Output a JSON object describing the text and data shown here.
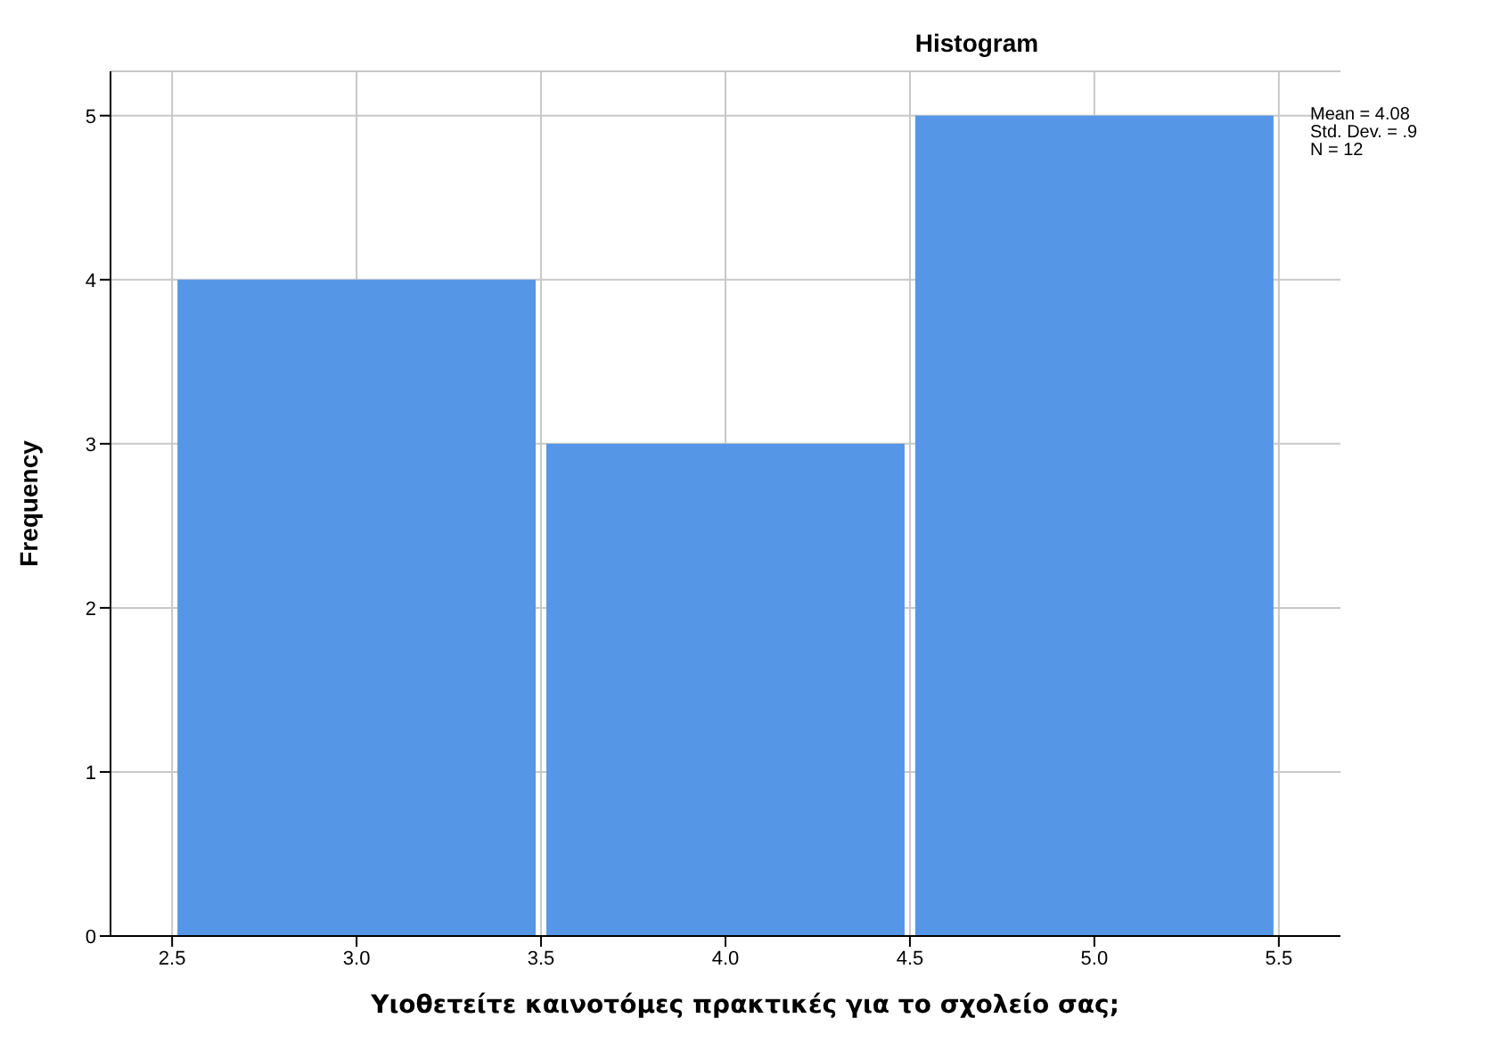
{
  "chart_data": {
    "type": "histogram",
    "title": "Histogram",
    "xlabel": "Υιοθετείτε καινοτόμες πρακτικές για το σχολείο σας;",
    "ylabel": "Frequency",
    "bins": [
      2.5,
      3.5,
      4.5,
      5.5
    ],
    "values": [
      4,
      3,
      5
    ],
    "color": "#5596e6",
    "xlim": [
      2.333,
      5.667
    ],
    "xticks": [
      2.5,
      {
        "value": 3,
        "label": "3.0"
      },
      3.5,
      {
        "value": 4,
        "label": "4.0"
      },
      4.5,
      {
        "value": 5,
        "label": "5.0"
      },
      5.5
    ],
    "ylim": [
      0,
      5.27
    ],
    "yticks": [
      0,
      1,
      2,
      3,
      4,
      5
    ],
    "grid": true,
    "annotations": [
      "Mean = 4.08",
      "Std. Dev. = .9",
      "N = 12"
    ]
  }
}
